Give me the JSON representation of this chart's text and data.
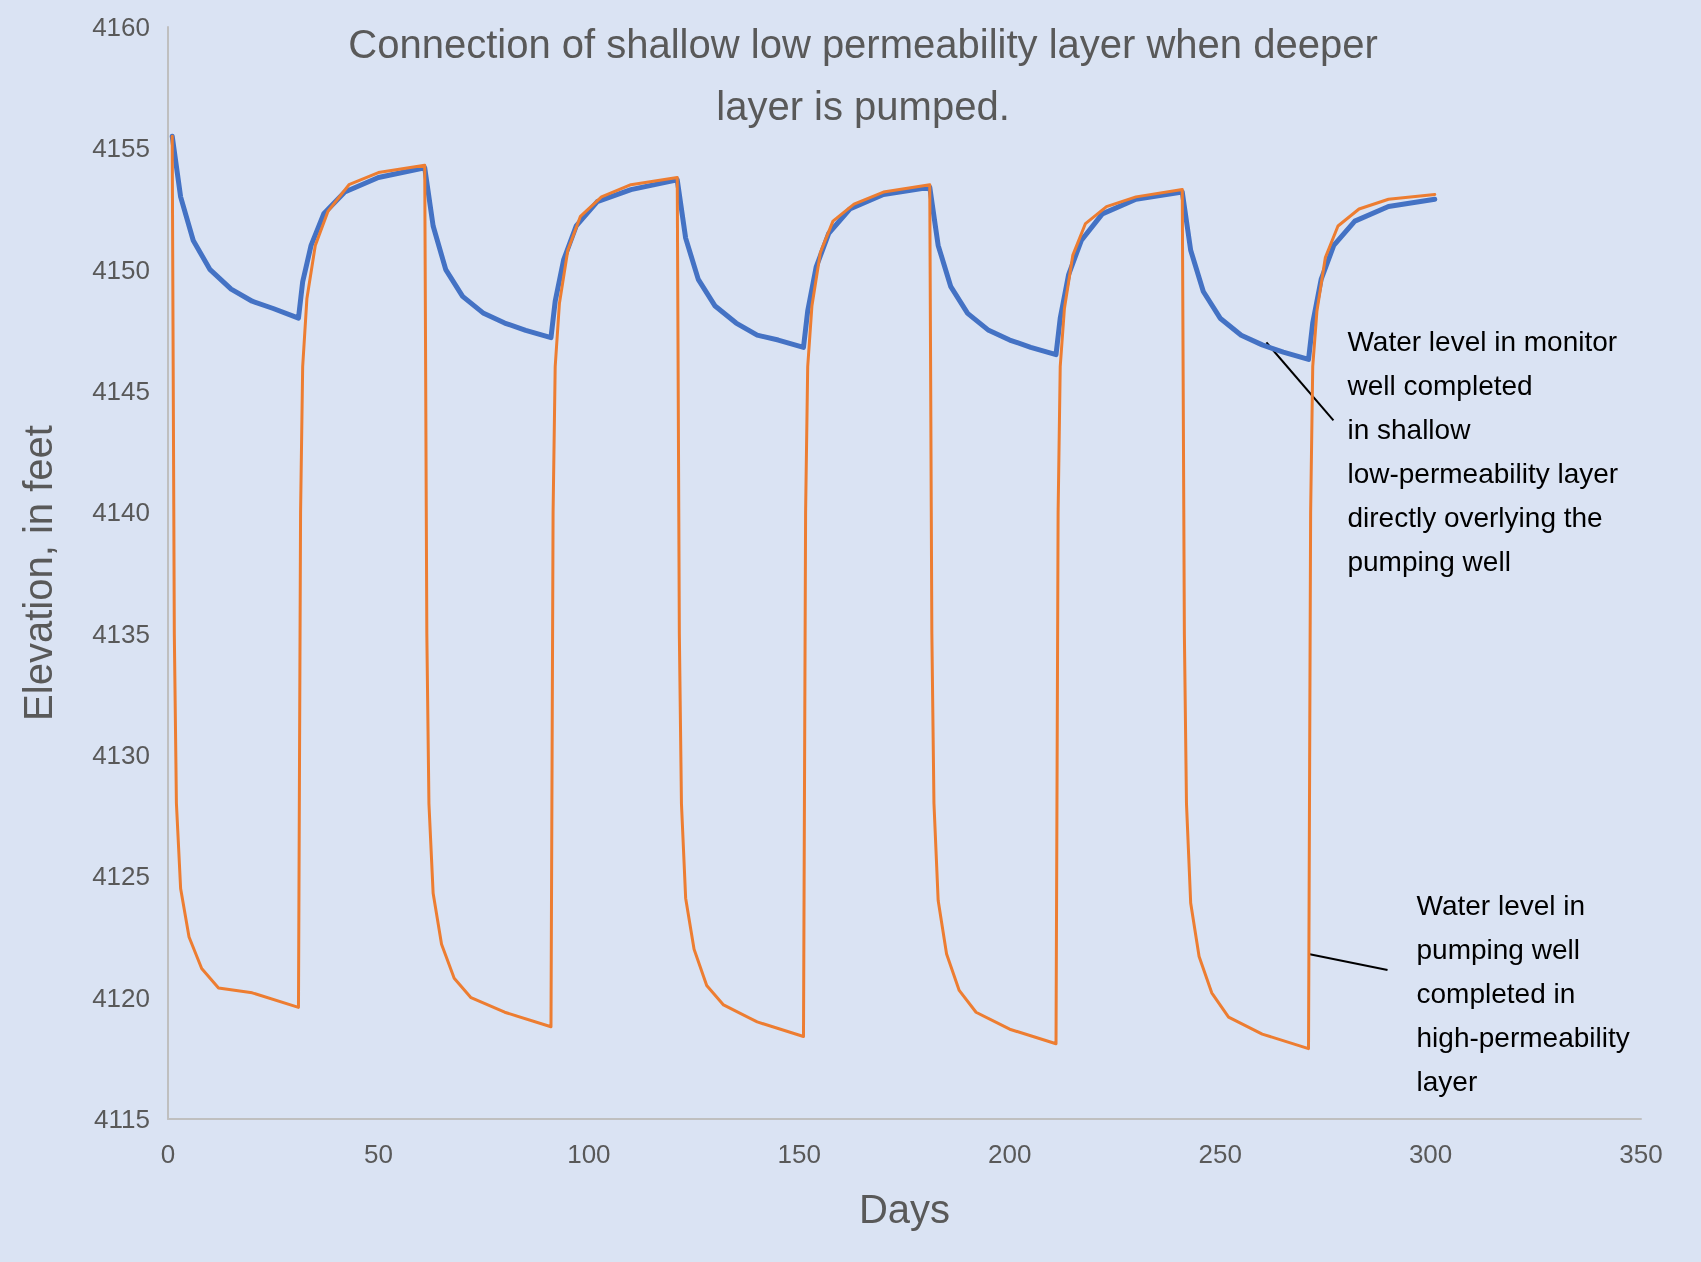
{
  "chart_data": {
    "type": "line",
    "title": "Connection of shallow low permeability layer when deeper\nlayer is pumped.",
    "xlabel": "Days",
    "ylabel": "Elevation, in feet",
    "xlim": [
      0,
      350
    ],
    "xticks": [
      0,
      50,
      100,
      150,
      200,
      250,
      300,
      350
    ],
    "ylim": [
      4115,
      4160
    ],
    "yticks": [
      4115,
      4120,
      4125,
      4130,
      4135,
      4140,
      4145,
      4150,
      4155,
      4160
    ],
    "grid": false,
    "marker": "none",
    "line_style": "solid",
    "annotations": [
      {
        "text": "Water level in monitor\nwell completed\nin shallow\nlow-permeability layer\ndirectly overlying the\npumping well",
        "x": 261,
        "y": 4147
      },
      {
        "text": "Water level in\npumping well\ncompleted in\nhigh-permeability\nlayer",
        "x": 271,
        "y": 4121.8
      }
    ],
    "series": [
      {
        "color": "#4472c4",
        "x": [
          1,
          3,
          6,
          10,
          15,
          20,
          25,
          31,
          32,
          34,
          37,
          42,
          50,
          61,
          63,
          66,
          70,
          75,
          80,
          85,
          91,
          92,
          94,
          97,
          102,
          110,
          121,
          123,
          126,
          130,
          135,
          140,
          145,
          151,
          152,
          154,
          157,
          162,
          170,
          181,
          183,
          186,
          190,
          195,
          200,
          205,
          211,
          212,
          214,
          217,
          222,
          230,
          241,
          243,
          246,
          250,
          255,
          260,
          265,
          271,
          272,
          274,
          277,
          282,
          290,
          301
        ],
        "values": [
          4155.5,
          4153,
          4151.2,
          4150,
          4149.2,
          4148.7,
          4148.4,
          4148,
          4149.5,
          4151,
          4152.3,
          4153.2,
          4153.8,
          4154.2,
          4151.8,
          4150,
          4148.9,
          4148.2,
          4147.8,
          4147.5,
          4147.2,
          4148.7,
          4150.4,
          4151.8,
          4152.8,
          4153.3,
          4153.7,
          4151.3,
          4149.6,
          4148.5,
          4147.8,
          4147.3,
          4147.1,
          4146.8,
          4148.3,
          4150.1,
          4151.5,
          4152.5,
          4153.1,
          4153.4,
          4151,
          4149.3,
          4148.2,
          4147.5,
          4147.1,
          4146.8,
          4146.5,
          4148,
          4149.8,
          4151.2,
          4152.3,
          4152.9,
          4153.2,
          4150.8,
          4149.1,
          4148,
          4147.3,
          4146.9,
          4146.6,
          4146.3,
          4147.8,
          4149.6,
          4151,
          4152,
          4152.6,
          4152.9
        ]
      },
      {
        "color": "#ed7d31",
        "x": [
          1,
          1.5,
          2,
          3,
          5,
          8,
          12,
          20,
          31,
          31.5,
          32,
          33,
          35,
          38,
          43,
          50,
          61,
          61.5,
          62,
          63,
          65,
          68,
          72,
          80,
          91,
          91.5,
          92,
          93,
          95,
          98,
          103,
          110,
          121,
          121.5,
          122,
          123,
          125,
          128,
          132,
          140,
          151,
          151.5,
          152,
          153,
          155,
          158,
          163,
          170,
          181,
          181.5,
          182,
          183,
          185,
          188,
          192,
          200,
          211,
          211.5,
          212,
          213,
          215,
          218,
          223,
          230,
          241,
          241.5,
          242,
          243,
          245,
          248,
          252,
          260,
          271,
          271.5,
          272,
          273,
          275,
          278,
          283,
          290,
          301
        ],
        "values": [
          4155.5,
          4135,
          4128,
          4124.5,
          4122.5,
          4121.2,
          4120.4,
          4120.2,
          4119.6,
          4140,
          4146,
          4148.8,
          4151,
          4152.4,
          4153.5,
          4154,
          4154.3,
          4135,
          4128,
          4124.3,
          4122.2,
          4120.8,
          4120,
          4119.4,
          4118.8,
          4140,
          4146,
          4148.6,
          4150.8,
          4152.2,
          4153,
          4153.5,
          4153.8,
          4135,
          4128,
          4124.1,
          4122,
          4120.5,
          4119.7,
          4119,
          4118.4,
          4140,
          4146,
          4148.5,
          4150.7,
          4152,
          4152.7,
          4153.2,
          4153.5,
          4135,
          4128,
          4124,
          4121.8,
          4120.3,
          4119.4,
          4118.7,
          4118.1,
          4140,
          4146,
          4148.4,
          4150.6,
          4151.9,
          4152.6,
          4153,
          4153.3,
          4135,
          4128,
          4123.9,
          4121.7,
          4120.2,
          4119.2,
          4118.5,
          4117.9,
          4140,
          4146,
          4148.3,
          4150.5,
          4151.8,
          4152.5,
          4152.9,
          4153.1
        ]
      }
    ]
  }
}
